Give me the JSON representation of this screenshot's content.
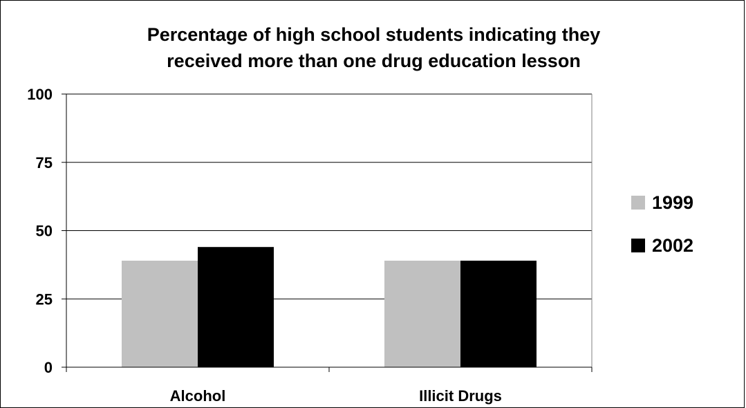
{
  "chart_data": {
    "type": "bar",
    "title_lines": [
      "Percentage of high school students indicating they",
      "received more than one drug education lesson"
    ],
    "categories": [
      "Alcohol",
      "Illicit Drugs"
    ],
    "series": [
      {
        "name": "1999",
        "values": [
          39,
          39
        ],
        "color": "#c0c0c0"
      },
      {
        "name": "2002",
        "values": [
          44,
          39
        ],
        "color": "#000000"
      }
    ],
    "ylim": [
      0,
      100
    ],
    "yticks": [
      0,
      25,
      50,
      75,
      100
    ],
    "grid": true,
    "legend_position": "right"
  }
}
